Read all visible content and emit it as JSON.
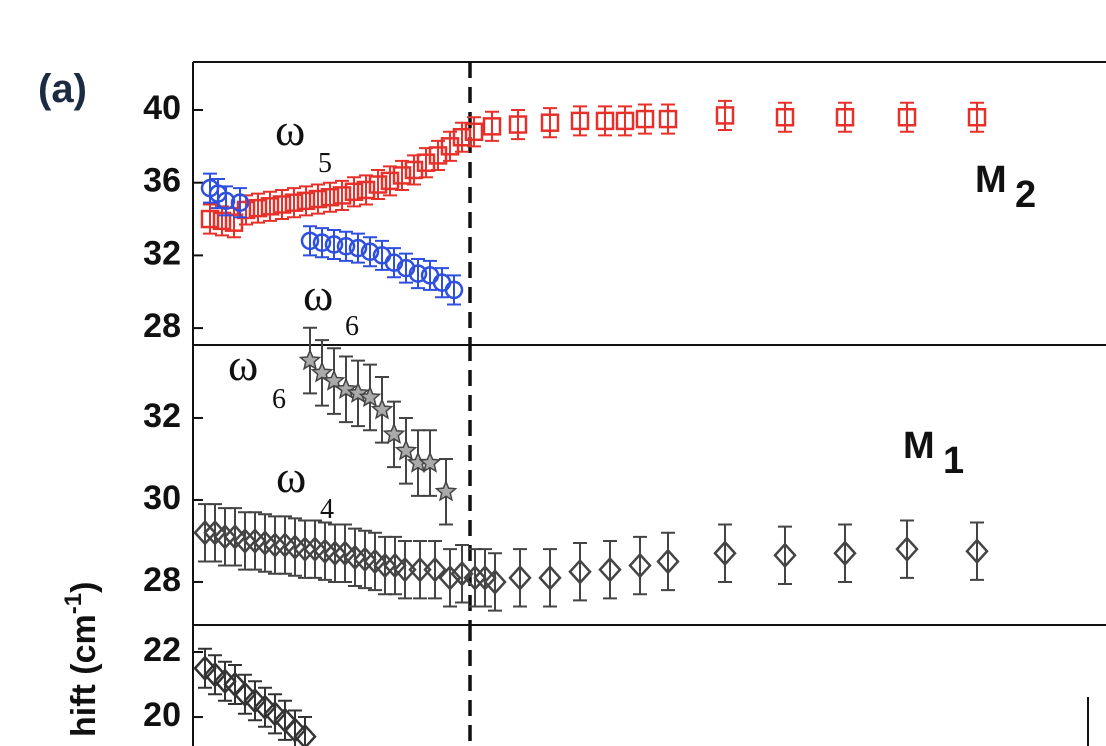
{
  "panel_label": "(a)",
  "y_label": {
    "text": "hift (cm",
    "sup": "-1",
    "close": ")"
  },
  "chart_data": [
    {
      "type": "scatter",
      "xlim": [
        0,
        913
      ],
      "ylim": [
        27.07,
        42.64
      ],
      "yticks": [
        28,
        32,
        36,
        40
      ],
      "vline_x": 277,
      "annotations": [
        {
          "text": "ω",
          "sub": "5"
        },
        {
          "text": "ω",
          "sub": "6"
        },
        {
          "text": "M",
          "sub": "2"
        }
      ],
      "series": [
        {
          "color": "#e8302a",
          "marker": "square",
          "x": [
            17,
            29,
            41,
            53,
            65,
            77,
            89,
            101,
            113,
            125,
            137,
            149,
            161,
            173,
            185,
            197,
            209,
            221,
            233,
            245,
            257,
            269,
            281,
            299,
            325,
            357,
            387,
            412,
            432,
            452,
            475,
            532,
            592,
            652,
            714,
            784
          ],
          "values": [
            34.0,
            33.9,
            33.8,
            34.5,
            34.6,
            34.7,
            34.8,
            34.9,
            35.0,
            35.1,
            35.2,
            35.3,
            35.5,
            35.6,
            35.9,
            36.1,
            36.4,
            36.7,
            37.1,
            37.5,
            38.0,
            38.5,
            38.8,
            39.1,
            39.2,
            39.3,
            39.4,
            39.4,
            39.4,
            39.5,
            39.5,
            39.7,
            39.6,
            39.6,
            39.6,
            39.6
          ],
          "errors": [
            0.8,
            0.8,
            0.8,
            0.8,
            0.8,
            0.8,
            0.8,
            0.8,
            0.8,
            0.8,
            0.8,
            0.8,
            0.8,
            0.8,
            0.8,
            0.8,
            0.8,
            0.8,
            0.8,
            0.8,
            0.8,
            0.8,
            0.8,
            0.8,
            0.8,
            0.8,
            0.8,
            0.8,
            0.8,
            0.8,
            0.8,
            0.8,
            0.8,
            0.8,
            0.8,
            0.8
          ]
        },
        {
          "color": "#2f4fe0",
          "marker": "circle",
          "x": [
            17,
            25,
            33,
            47,
            117,
            129,
            141,
            153,
            165,
            177,
            189,
            201,
            213,
            225,
            237,
            249,
            261
          ],
          "values": [
            35.7,
            35.4,
            35.0,
            34.9,
            32.8,
            32.7,
            32.6,
            32.5,
            32.4,
            32.2,
            32.0,
            31.6,
            31.3,
            31.0,
            30.9,
            30.5,
            30.1
          ],
          "errors": [
            0.8,
            0.8,
            0.8,
            0.8,
            0.8,
            0.8,
            0.8,
            0.8,
            0.8,
            0.8,
            0.8,
            0.8,
            0.8,
            0.8,
            0.8,
            0.8,
            0.8
          ]
        }
      ]
    },
    {
      "type": "scatter",
      "xlim": [
        0,
        913
      ],
      "ylim": [
        26.95,
        33.78
      ],
      "yticks": [
        28,
        30,
        32
      ],
      "vline_x": 277,
      "annotations": [
        {
          "text": "ω",
          "sub": "6"
        },
        {
          "text": "ω",
          "sub": "4"
        },
        {
          "text": "M",
          "sub": "1"
        }
      ],
      "series": [
        {
          "color": "#444444",
          "marker": "star",
          "x": [
            117,
            129,
            141,
            153,
            165,
            177,
            189,
            201,
            213,
            225,
            237,
            253
          ],
          "values": [
            33.4,
            33.1,
            32.9,
            32.7,
            32.6,
            32.5,
            32.2,
            31.6,
            31.2,
            30.9,
            30.9,
            30.2
          ],
          "errors": [
            0.8,
            0.8,
            0.8,
            0.8,
            0.8,
            0.8,
            0.8,
            0.8,
            0.8,
            0.8,
            0.8,
            0.8
          ]
        },
        {
          "color": "#444444",
          "marker": "diamond",
          "x": [
            12,
            22,
            32,
            42,
            52,
            62,
            72,
            82,
            92,
            102,
            112,
            122,
            132,
            142,
            152,
            162,
            172,
            182,
            192,
            202,
            212,
            227,
            242,
            257,
            269,
            282,
            292,
            302,
            327,
            357,
            387,
            417,
            447,
            475,
            532,
            592,
            652,
            714,
            784
          ],
          "values": [
            29.2,
            29.2,
            29.1,
            29.1,
            29.0,
            29.0,
            28.95,
            28.9,
            28.9,
            28.85,
            28.8,
            28.8,
            28.75,
            28.7,
            28.7,
            28.6,
            28.55,
            28.5,
            28.4,
            28.4,
            28.3,
            28.3,
            28.3,
            28.1,
            28.2,
            28.1,
            28.1,
            28.0,
            28.1,
            28.1,
            28.25,
            28.3,
            28.4,
            28.5,
            28.7,
            28.65,
            28.7,
            28.8,
            28.75
          ],
          "errors": [
            0.7,
            0.7,
            0.7,
            0.7,
            0.7,
            0.7,
            0.7,
            0.7,
            0.7,
            0.7,
            0.7,
            0.7,
            0.7,
            0.7,
            0.7,
            0.7,
            0.7,
            0.7,
            0.7,
            0.7,
            0.7,
            0.7,
            0.7,
            0.7,
            0.7,
            0.7,
            0.7,
            0.7,
            0.7,
            0.7,
            0.7,
            0.7,
            0.7,
            0.7,
            0.7,
            0.7,
            0.7,
            0.7,
            0.7
          ]
        }
      ]
    },
    {
      "type": "scatter",
      "xlim": [
        0,
        913
      ],
      "ylim": [
        19.11,
        22.83
      ],
      "yticks": [
        20,
        22
      ],
      "vline_x": 277,
      "annotations": [],
      "series": [
        {
          "color": "#333333",
          "marker": "diamond",
          "x": [
            12,
            22,
            32,
            42,
            52,
            62,
            72,
            82,
            92,
            102,
            112
          ],
          "values": [
            21.5,
            21.3,
            21.1,
            21.0,
            20.7,
            20.5,
            20.3,
            20.1,
            19.9,
            19.6,
            19.4
          ],
          "errors": [
            0.6,
            0.6,
            0.6,
            0.6,
            0.6,
            0.6,
            0.6,
            0.6,
            0.6,
            0.6,
            0.6
          ]
        }
      ]
    }
  ]
}
